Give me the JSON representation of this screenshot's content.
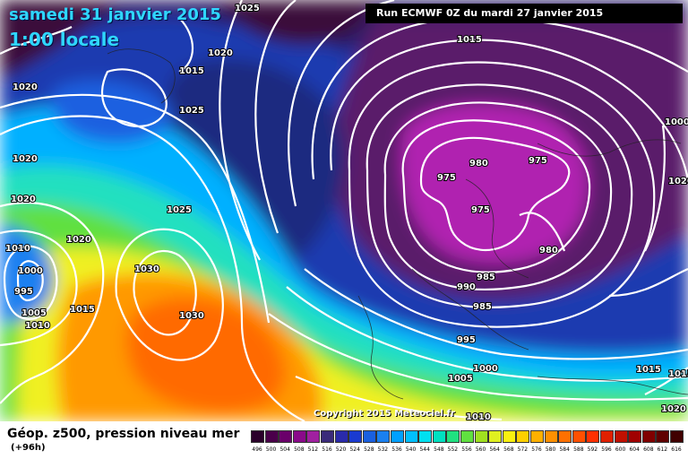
{
  "header": {
    "date": "samedi 31 janvier 2015",
    "time": "1:00 locale",
    "run": "Run ECMWF 0Z du mardi 27 janvier 2015"
  },
  "copyright": "Copyright 2015 Meteociel.fr",
  "footer": {
    "title": "Géop. z500, pression niveau mer",
    "subtitle": "(+96h)"
  },
  "colors": {
    "purple_dark": "#3a0a3a",
    "purple": "#8a0a8a",
    "magenta": "#b020b0",
    "navy": "#1a2a6a",
    "blue_dark": "#1a3aa8",
    "blue": "#1a60e0",
    "cyan": "#00b0ff",
    "turquoise": "#00e0d0",
    "green": "#40e060",
    "yellow": "#f0f020",
    "orange": "#ff9900",
    "orange_dark": "#ff6a00",
    "isobar": "#ffffff"
  },
  "legend": {
    "values": [
      "496",
      "500",
      "504",
      "508",
      "512",
      "516",
      "520",
      "524",
      "528",
      "532",
      "536",
      "540",
      "544",
      "548",
      "552",
      "556",
      "560",
      "564",
      "568",
      "572",
      "576",
      "580",
      "584",
      "588",
      "592",
      "596",
      "600",
      "604",
      "608",
      "612",
      "616"
    ],
    "colors": [
      "#2a002a",
      "#4a004a",
      "#6a006a",
      "#8a0a8a",
      "#a020a0",
      "#3a2a7a",
      "#2a2aaa",
      "#1a3ad0",
      "#1a60e0",
      "#1a80f0",
      "#00a0ff",
      "#00c0ff",
      "#00e0f0",
      "#00e0c0",
      "#20e080",
      "#60e040",
      "#a0e020",
      "#e0f020",
      "#f8f010",
      "#ffd000",
      "#ffb000",
      "#ff9000",
      "#ff7000",
      "#ff5000",
      "#ff3000",
      "#e02000",
      "#c01000",
      "#a00000",
      "#800000",
      "#600000",
      "#400000"
    ]
  },
  "isobar_labels": [
    {
      "text": "1025"
    },
    {
      "text": "1020"
    },
    {
      "text": "1015"
    },
    {
      "text": "1025"
    },
    {
      "text": "1020"
    },
    {
      "text": "1015"
    },
    {
      "text": "1020"
    },
    {
      "text": "1020"
    },
    {
      "text": "1025"
    },
    {
      "text": "1020"
    },
    {
      "text": "1010"
    },
    {
      "text": "1000"
    },
    {
      "text": "995"
    },
    {
      "text": "1005"
    },
    {
      "text": "1010"
    },
    {
      "text": "1015"
    },
    {
      "text": "1030"
    },
    {
      "text": "1030"
    },
    {
      "text": "1020"
    },
    {
      "text": "1015"
    },
    {
      "text": "980"
    },
    {
      "text": "975"
    },
    {
      "text": "975"
    },
    {
      "text": "975"
    },
    {
      "text": "980"
    },
    {
      "text": "985"
    },
    {
      "text": "990"
    },
    {
      "text": "985"
    },
    {
      "text": "995"
    },
    {
      "text": "1000"
    },
    {
      "text": "1005"
    },
    {
      "text": "1010"
    },
    {
      "text": "1000"
    },
    {
      "text": "1015"
    },
    {
      "text": "1020"
    }
  ]
}
